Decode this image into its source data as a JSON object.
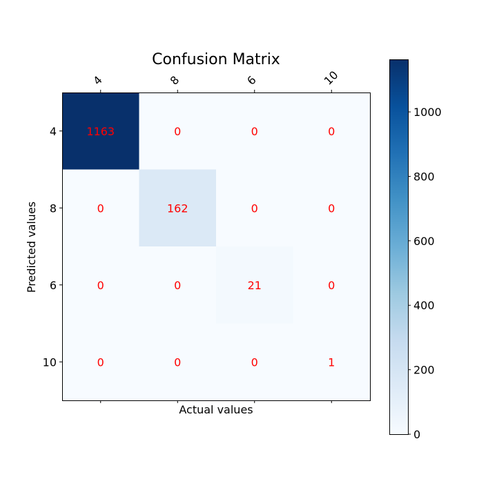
{
  "chart_data": {
    "type": "heatmap",
    "title": "Confusion Matrix",
    "xlabel": "Actual values",
    "ylabel": "Predicted values",
    "x_categories": [
      "4",
      "8",
      "6",
      "10"
    ],
    "y_categories": [
      "4",
      "8",
      "6",
      "10"
    ],
    "values": [
      [
        1163,
        0,
        0,
        0
      ],
      [
        0,
        162,
        0,
        0
      ],
      [
        0,
        0,
        21,
        0
      ],
      [
        0,
        0,
        0,
        1
      ]
    ],
    "colormap": "Blues",
    "colorbar": {
      "range": [
        0,
        1163
      ],
      "ticks": [
        0,
        200,
        400,
        600,
        800,
        1000
      ]
    },
    "cell_text_color": "#ff0000"
  }
}
